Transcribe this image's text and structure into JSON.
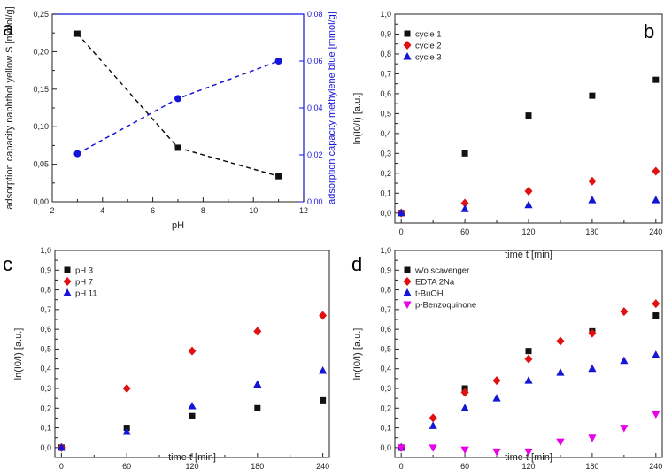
{
  "figure": {
    "panel_letters": [
      "a",
      "b",
      "c",
      "d"
    ]
  },
  "colors": {
    "black": "#111111",
    "red": "#e01010",
    "blue": "#1515d8",
    "magenta": "#e800e8",
    "axis_blue": "#1515d8"
  },
  "chart_data": [
    {
      "id": "a",
      "type": "line",
      "xlabel": "pH",
      "ylabel": "adsorption capacity naphthol yellow S [mmol/g]",
      "y2label": "adsorption capacity methylene blue [mmol/g]",
      "xlim": [
        2,
        12
      ],
      "ylim": [
        0,
        0.25
      ],
      "y2lim": [
        0,
        0.08
      ],
      "xticks": [
        "2",
        "4",
        "6",
        "8",
        "10",
        "12"
      ],
      "yticks": [
        "0,00",
        "0,05",
        "0,10",
        "0,15",
        "0,20",
        "0,25"
      ],
      "y2ticks": [
        "0,00",
        "0,02",
        "0,04",
        "0,06",
        "0,08"
      ],
      "series": [
        {
          "name": "naphthol yellow S",
          "axis": "left",
          "marker": "square",
          "color": "#111111",
          "line": "dashed",
          "x": [
            3,
            7,
            11
          ],
          "y": [
            0.224,
            0.072,
            0.034
          ]
        },
        {
          "name": "methylene blue",
          "axis": "right",
          "marker": "circle",
          "color": "#1515d8",
          "line": "dashed",
          "x": [
            3,
            7,
            11
          ],
          "y": [
            0.0205,
            0.044,
            0.06
          ]
        }
      ]
    },
    {
      "id": "b",
      "type": "scatter",
      "xlabel": "time t [min]",
      "ylabel": "ln(I0/I) [a.u.]",
      "xlim": [
        -6,
        246
      ],
      "ylim": [
        -0.05,
        1.0
      ],
      "xticks": [
        "0",
        "60",
        "120",
        "180",
        "240"
      ],
      "yticks": [
        "0,0",
        "0,1",
        "0,2",
        "0,3",
        "0,4",
        "0,5",
        "0,6",
        "0,7",
        "0,8",
        "0,9",
        "1,0"
      ],
      "legend": "top-left",
      "series": [
        {
          "name": "cycle 1",
          "marker": "square",
          "color": "#111111",
          "x": [
            0,
            60,
            120,
            180,
            240
          ],
          "y": [
            0.0,
            0.3,
            0.49,
            0.59,
            0.67
          ]
        },
        {
          "name": "cycle 2",
          "marker": "diamond",
          "color": "#e01010",
          "x": [
            0,
            60,
            120,
            180,
            240
          ],
          "y": [
            0.0,
            0.05,
            0.11,
            0.16,
            0.21
          ]
        },
        {
          "name": "cycle 3",
          "marker": "triangle",
          "color": "#1515d8",
          "x": [
            0,
            60,
            120,
            180,
            240
          ],
          "y": [
            0.0,
            0.02,
            0.04,
            0.065,
            0.065
          ]
        }
      ]
    },
    {
      "id": "c",
      "type": "scatter",
      "xlabel": "time t [min]",
      "ylabel": "ln(I0/I) [a.u.]",
      "xlim": [
        -6,
        246
      ],
      "ylim": [
        -0.05,
        1.0
      ],
      "xticks": [
        "0",
        "60",
        "120",
        "180",
        "240"
      ],
      "yticks": [
        "0,0",
        "0,1",
        "0,2",
        "0,3",
        "0,4",
        "0,5",
        "0,6",
        "0,7",
        "0,8",
        "0,9",
        "1,0"
      ],
      "legend": "top-left",
      "series": [
        {
          "name": "pH 3",
          "marker": "square",
          "color": "#111111",
          "x": [
            0,
            60,
            120,
            180,
            240
          ],
          "y": [
            0.0,
            0.1,
            0.16,
            0.2,
            0.24
          ]
        },
        {
          "name": "pH 7",
          "marker": "diamond",
          "color": "#e01010",
          "x": [
            0,
            60,
            120,
            180,
            240
          ],
          "y": [
            0.0,
            0.3,
            0.49,
            0.59,
            0.67
          ]
        },
        {
          "name": "pH 11",
          "marker": "triangle",
          "color": "#1515d8",
          "x": [
            0,
            60,
            120,
            180,
            240
          ],
          "y": [
            0.0,
            0.08,
            0.21,
            0.32,
            0.39
          ]
        }
      ]
    },
    {
      "id": "d",
      "type": "scatter",
      "xlabel": "time t [min]",
      "ylabel": "ln(I0/I) [a.u.]",
      "xlim": [
        -6,
        246
      ],
      "ylim": [
        -0.05,
        1.0
      ],
      "xticks": [
        "0",
        "60",
        "120",
        "180",
        "240"
      ],
      "yticks": [
        "0,0",
        "0,1",
        "0,2",
        "0,3",
        "0,4",
        "0,5",
        "0,6",
        "0,7",
        "0,8",
        "0,9",
        "1,0"
      ],
      "legend": "top-left",
      "series": [
        {
          "name": "w/o scavenger",
          "marker": "square",
          "color": "#111111",
          "x": [
            0,
            60,
            120,
            180,
            240
          ],
          "y": [
            0.0,
            0.3,
            0.49,
            0.59,
            0.67
          ]
        },
        {
          "name": "EDTA 2Na",
          "marker": "diamond",
          "color": "#e01010",
          "x": [
            0,
            30,
            60,
            90,
            120,
            150,
            180,
            210,
            240
          ],
          "y": [
            0.0,
            0.15,
            0.28,
            0.34,
            0.45,
            0.54,
            0.58,
            0.69,
            0.73
          ]
        },
        {
          "name": "t-BuOH",
          "marker": "triangle",
          "color": "#1515d8",
          "x": [
            0,
            30,
            60,
            90,
            120,
            150,
            180,
            210,
            240
          ],
          "y": [
            0.0,
            0.11,
            0.2,
            0.25,
            0.34,
            0.38,
            0.4,
            0.44,
            0.47
          ]
        },
        {
          "name": "p-Benzoquinone",
          "marker": "triangle-down",
          "color": "#e800e8",
          "x": [
            0,
            30,
            60,
            90,
            120,
            150,
            180,
            210,
            240
          ],
          "y": [
            0.0,
            0.0,
            -0.01,
            -0.02,
            -0.02,
            0.03,
            0.05,
            0.1,
            0.17
          ]
        }
      ]
    }
  ]
}
